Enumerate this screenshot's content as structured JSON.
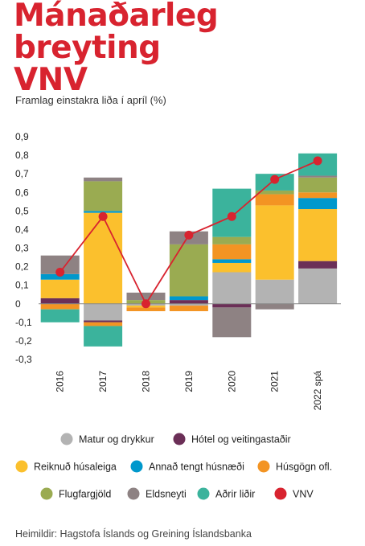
{
  "title_line1": "Mánaðarleg breyting",
  "title_line2": "VNV",
  "subtitle": "Framlag einstakra liða í apríl (%)",
  "source": "Heimildir: Hagstofa Íslands og Greining Íslandsbanka",
  "chart_data": {
    "type": "bar",
    "stacked": true,
    "categories": [
      "2016",
      "2017",
      "2018",
      "2019",
      "2020",
      "2021",
      "2022 spá"
    ],
    "ylim": [
      -0.3,
      0.9
    ],
    "yticks": [
      "0,9",
      "0,8",
      "0,7",
      "0,6",
      "0,5",
      "0,4",
      "0,3",
      "0,2",
      "0,1",
      "0",
      "-0,1",
      "-0,2",
      "-0,3"
    ],
    "grid": false,
    "series": [
      {
        "name": "Matur og drykkur",
        "color": "#b3b3b3",
        "values": [
          0.0,
          -0.09,
          -0.01,
          -0.01,
          0.17,
          0.13,
          0.19
        ]
      },
      {
        "name": "Hótel og veitingastaðir",
        "color": "#6b2f57",
        "values": [
          0.03,
          -0.01,
          0.0,
          0.02,
          -0.02,
          0.0,
          0.04
        ]
      },
      {
        "name": "Reiknuð húsaleiga",
        "color": "#fbc02d",
        "values": [
          0.1,
          0.49,
          -0.01,
          0.0,
          0.05,
          0.4,
          0.28
        ]
      },
      {
        "name": "Annað tengt húsnæði",
        "color": "#0098cc",
        "values": [
          0.03,
          0.01,
          0.0,
          0.02,
          0.02,
          0.0,
          0.06
        ]
      },
      {
        "name": "Húsgögn ofl.",
        "color": "#f39423",
        "values": [
          -0.03,
          -0.02,
          -0.02,
          -0.03,
          0.08,
          0.06,
          0.03
        ]
      },
      {
        "name": "Flugfargjöld",
        "color": "#9aab51",
        "values": [
          0.0,
          0.16,
          0.02,
          0.28,
          0.04,
          0.02,
          0.08
        ]
      },
      {
        "name": "Eldsneyti",
        "color": "#8e8283",
        "values": [
          0.1,
          0.02,
          0.04,
          0.07,
          -0.16,
          -0.03,
          0.01
        ]
      },
      {
        "name": "Aðrir liðir",
        "color": "#3bb39c",
        "values": [
          -0.07,
          -0.11,
          0.0,
          0.0,
          0.26,
          0.09,
          0.12
        ]
      }
    ],
    "line": {
      "name": "VNV",
      "color": "#d8232f",
      "values": [
        0.17,
        0.47,
        0.0,
        0.37,
        0.47,
        0.67,
        0.77
      ]
    },
    "legend": {
      "placement": "bottom"
    }
  }
}
